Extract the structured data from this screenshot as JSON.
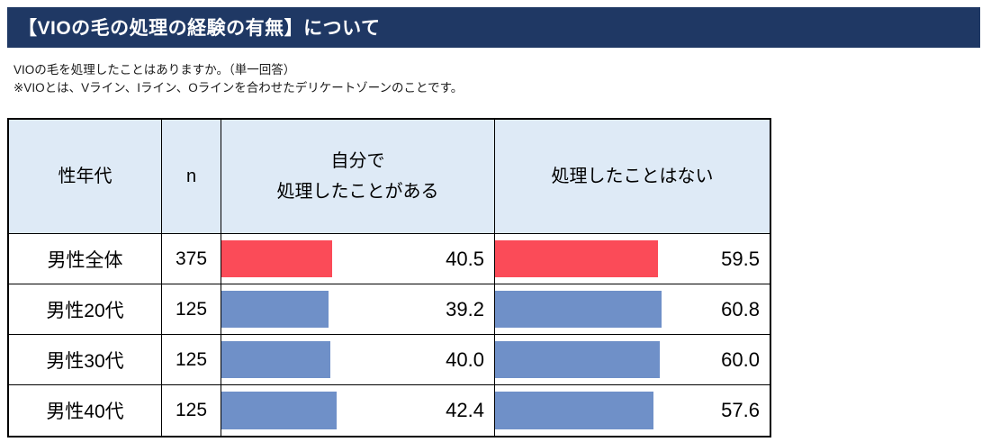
{
  "header": {
    "title": "【VIOの毛の処理の経験の有無】について"
  },
  "description": {
    "line1": "VIOの毛を処理したことはありますか。（単一回答）",
    "line2": "※VIOとは、Vライン、Iライン、Oラインを合わせたデリケートゾーンのことです。"
  },
  "colors": {
    "title_bar_bg": "#1F3864",
    "title_text": "#FFFFFF",
    "header_cell_bg": "#DEEAF6",
    "highlight_bar": "#FB4B58",
    "normal_bar": "#6F90C8",
    "border": "#000000"
  },
  "chart_data": {
    "type": "table",
    "title": "【VIOの毛の処理の経験の有無】について",
    "columns": [
      "性年代",
      "n",
      "自分で\n処理したことがある",
      "処理したことはない"
    ],
    "value_scale": {
      "min": 0,
      "max": 100,
      "unit": "%"
    },
    "rows": [
      {
        "label": "男性全体",
        "n": 375,
        "self_processed": 40.5,
        "never_processed": 59.5,
        "bar_color": "#FB4B58"
      },
      {
        "label": "男性20代",
        "n": 125,
        "self_processed": 39.2,
        "never_processed": 60.8,
        "bar_color": "#6F90C8"
      },
      {
        "label": "男性30代",
        "n": 125,
        "self_processed": 40.0,
        "never_processed": 60.0,
        "bar_color": "#6F90C8"
      },
      {
        "label": "男性40代",
        "n": 125,
        "self_processed": 42.4,
        "never_processed": 57.6,
        "bar_color": "#6F90C8"
      }
    ]
  }
}
